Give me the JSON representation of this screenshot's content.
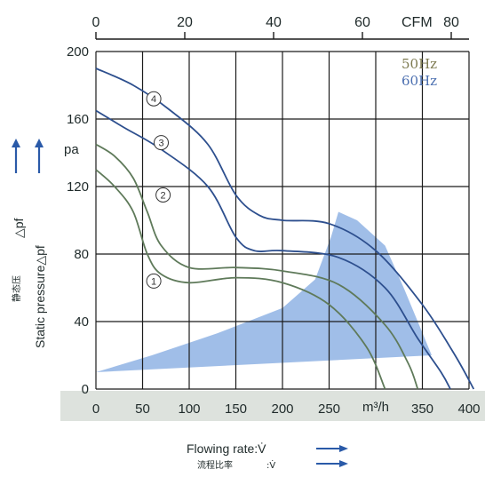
{
  "chart_data": {
    "type": "line",
    "colors": {
      "curve_50hz": "#5f7a5a",
      "curve_60hz": "#2d4f8e",
      "region": "#8fb3e4",
      "grid": "#1b1b1b",
      "band": "#dde2dd",
      "arrow": "#2a5aa8"
    },
    "x_bottom": {
      "label": "m³/h",
      "unit_short": "m³/h",
      "ticks": [
        "0",
        "50",
        "100",
        "150",
        "200",
        "250",
        "350",
        "400"
      ],
      "tick_values": [
        0,
        50,
        100,
        150,
        200,
        250,
        350,
        400
      ],
      "range": [
        0,
        400
      ]
    },
    "x_top": {
      "label": "CFM",
      "ticks": [
        "0",
        "20",
        "40",
        "60",
        "80"
      ],
      "tick_values": [
        0,
        20,
        40,
        60,
        80
      ]
    },
    "y": {
      "ticks": [
        "0",
        "40",
        "80",
        "120",
        "160",
        "200"
      ],
      "tick_values": [
        0,
        40,
        80,
        120,
        160,
        200
      ],
      "range": [
        0,
        200
      ],
      "unit": "pa",
      "label_en": "Static pressure△pf",
      "label_cn": "静态压",
      "label_cn_sym": "△pf"
    },
    "xlabel_en": "Flowing rate:V̇",
    "xlabel_cn": "流程比率",
    "xlabel_cn_sym": ":V̇",
    "legend": [
      {
        "label": "50Hz",
        "color": "#7d7a50"
      },
      {
        "label": "60Hz",
        "color": "#4b6fb0"
      }
    ],
    "series": [
      {
        "name": "1",
        "frequency": "50Hz",
        "points": [
          [
            0,
            130
          ],
          [
            20,
            120
          ],
          [
            40,
            105
          ],
          [
            55,
            80
          ],
          [
            70,
            68
          ],
          [
            100,
            63
          ],
          [
            150,
            66
          ],
          [
            200,
            63
          ],
          [
            250,
            50
          ],
          [
            290,
            25
          ],
          [
            310,
            0
          ]
        ]
      },
      {
        "name": "2",
        "frequency": "50Hz",
        "points": [
          [
            0,
            145
          ],
          [
            20,
            138
          ],
          [
            40,
            125
          ],
          [
            55,
            105
          ],
          [
            70,
            85
          ],
          [
            100,
            72
          ],
          [
            150,
            72
          ],
          [
            200,
            70
          ],
          [
            260,
            62
          ],
          [
            310,
            38
          ],
          [
            335,
            15
          ],
          [
            345,
            0
          ]
        ]
      },
      {
        "name": "3",
        "frequency": "60Hz",
        "points": [
          [
            0,
            165
          ],
          [
            30,
            155
          ],
          [
            70,
            142
          ],
          [
            120,
            120
          ],
          [
            150,
            90
          ],
          [
            170,
            82
          ],
          [
            200,
            82
          ],
          [
            260,
            78
          ],
          [
            310,
            60
          ],
          [
            345,
            30
          ],
          [
            370,
            10
          ],
          [
            380,
            0
          ]
        ]
      },
      {
        "name": "4",
        "frequency": "60Hz",
        "points": [
          [
            0,
            190
          ],
          [
            40,
            180
          ],
          [
            80,
            165
          ],
          [
            120,
            145
          ],
          [
            150,
            115
          ],
          [
            175,
            103
          ],
          [
            200,
            100
          ],
          [
            250,
            98
          ],
          [
            300,
            82
          ],
          [
            350,
            50
          ],
          [
            385,
            20
          ],
          [
            405,
            0
          ]
        ]
      }
    ],
    "region": {
      "points": [
        [
          0,
          10
        ],
        [
          60,
          20
        ],
        [
          130,
          33
        ],
        [
          200,
          48
        ],
        [
          235,
          65
        ],
        [
          252,
          90
        ],
        [
          260,
          105
        ],
        [
          280,
          100
        ],
        [
          310,
          85
        ],
        [
          330,
          60
        ],
        [
          345,
          40
        ],
        [
          360,
          20
        ]
      ]
    }
  }
}
